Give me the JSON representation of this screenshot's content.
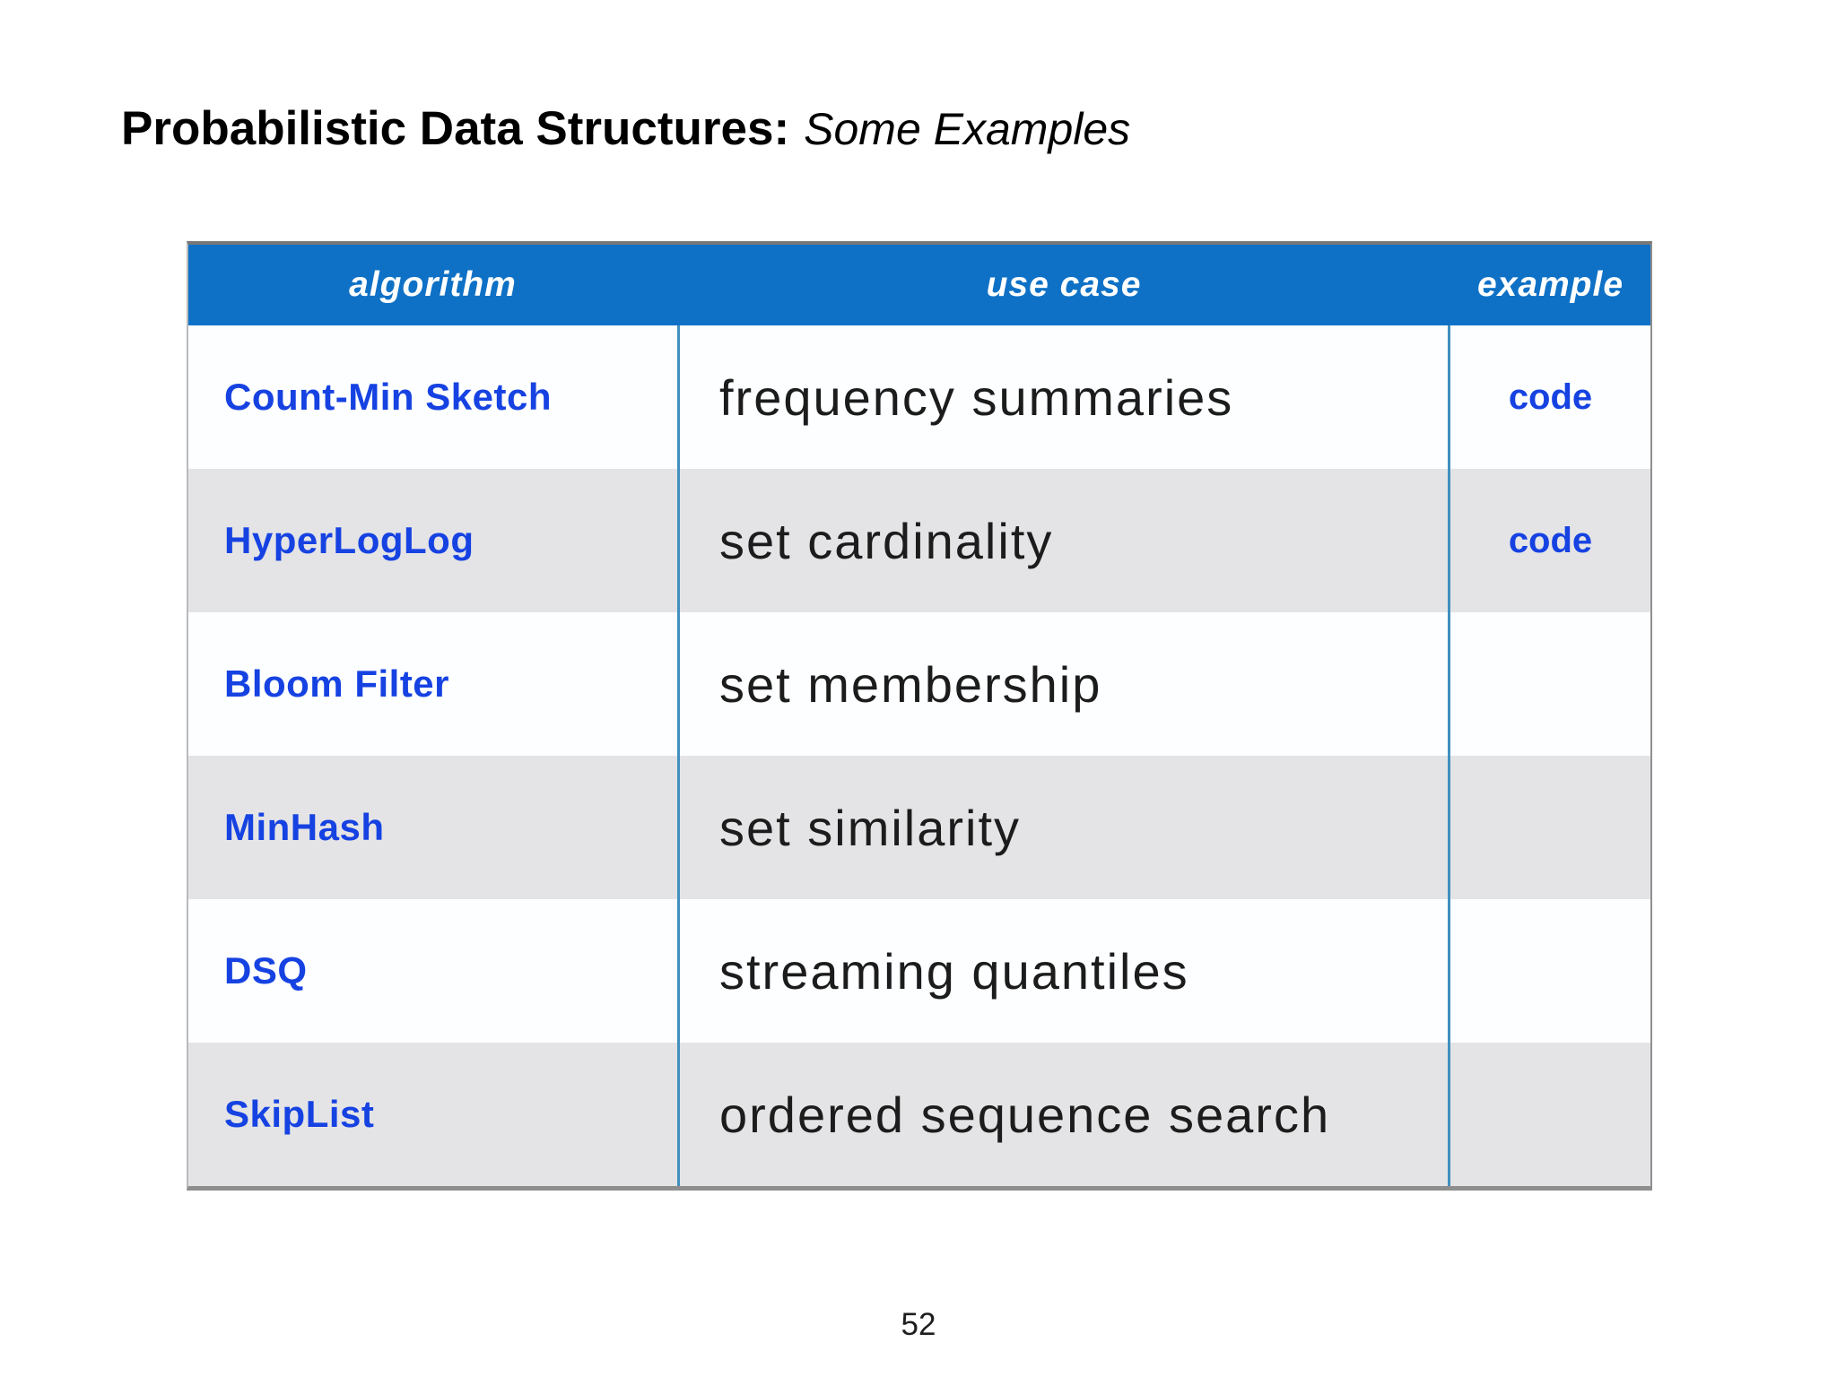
{
  "slide": {
    "title_bold": "Probabilistic Data Structures:",
    "title_italic": "Some Examples",
    "page_number": "52"
  },
  "table": {
    "headers": [
      "algorithm",
      "use case",
      "example"
    ],
    "rows": [
      {
        "algorithm": "Count-Min Sketch",
        "use_case": "frequency summaries",
        "example": "code"
      },
      {
        "algorithm": "HyperLogLog",
        "use_case": "set cardinality",
        "example": "code"
      },
      {
        "algorithm": "Bloom Filter",
        "use_case": "set membership",
        "example": ""
      },
      {
        "algorithm": "MinHash",
        "use_case": "set similarity",
        "example": ""
      },
      {
        "algorithm": "DSQ",
        "use_case": "streaming quantiles",
        "example": ""
      },
      {
        "algorithm": "SkipList",
        "use_case": "ordered sequence search",
        "example": ""
      }
    ],
    "colors": {
      "header_bg": "#0e71c6",
      "header_text": "#ffffff",
      "row_bg": "#fcfeff",
      "row_alt_bg": "#e4e4e6",
      "divider": "#4190c0",
      "link_blue": "#1642e2",
      "body_text": "#1c1c1c"
    }
  }
}
